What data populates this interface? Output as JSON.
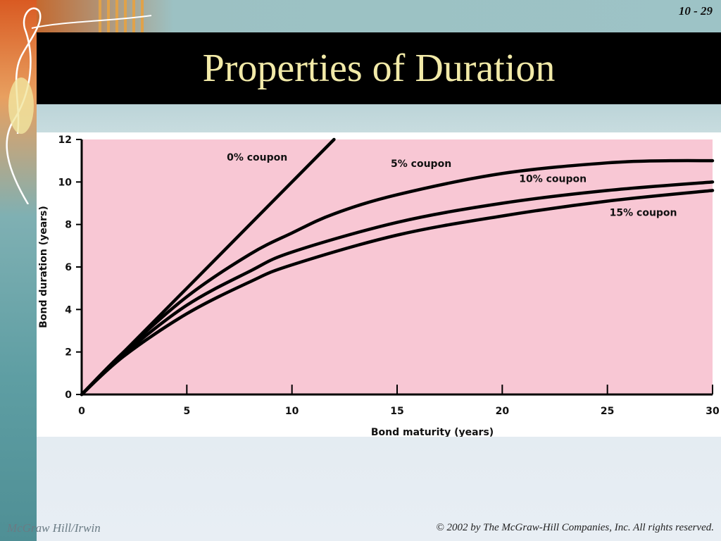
{
  "slide": {
    "number": "10 - 29",
    "title": "Properties of Duration",
    "footer_left": "McGraw Hill/Irwin",
    "footer_right": "© 2002 by The McGraw-Hill Companies, Inc. All rights reserved."
  },
  "colors": {
    "plot_background": "#f8c7d4",
    "line": "#000000",
    "title_text": "#f2eaa8"
  },
  "chart_data": {
    "type": "line",
    "title": "",
    "xlabel": "Bond maturity (years)",
    "ylabel": "Bond duration (years)",
    "xlim": [
      0,
      30
    ],
    "ylim": [
      0,
      12
    ],
    "xticks": [
      0,
      5,
      10,
      15,
      20,
      25,
      30
    ],
    "yticks": [
      0,
      2,
      4,
      6,
      8,
      10,
      12
    ],
    "grid": false,
    "series": [
      {
        "name": "0% coupon",
        "x": [
          0,
          5,
          10,
          12
        ],
        "y": [
          0,
          5,
          10,
          12
        ]
      },
      {
        "name": "5% coupon",
        "x": [
          0,
          2,
          5,
          8,
          10,
          12,
          15,
          20,
          25,
          28,
          30
        ],
        "y": [
          0,
          2.0,
          4.6,
          6.6,
          7.6,
          8.5,
          9.4,
          10.4,
          10.9,
          11.0,
          11.0
        ]
      },
      {
        "name": "10% coupon",
        "x": [
          0,
          2,
          5,
          8,
          10,
          15,
          20,
          25,
          30
        ],
        "y": [
          0,
          1.9,
          4.2,
          5.8,
          6.7,
          8.1,
          9.0,
          9.6,
          10.0
        ]
      },
      {
        "name": "15% coupon",
        "x": [
          0,
          2,
          5,
          8,
          10,
          15,
          20,
          25,
          30
        ],
        "y": [
          0,
          1.8,
          3.8,
          5.3,
          6.1,
          7.5,
          8.4,
          9.1,
          9.6
        ]
      }
    ]
  }
}
